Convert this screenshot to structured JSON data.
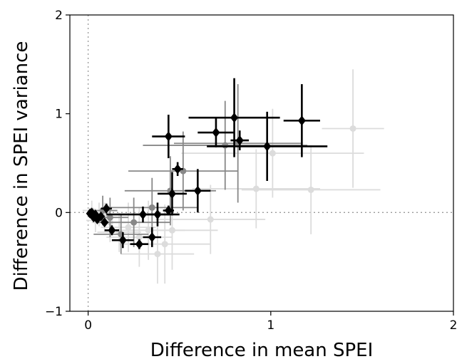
{
  "chart_data": {
    "type": "scatter",
    "title": "",
    "xlabel": "Difference in mean SPEI",
    "ylabel": "Difference in SPEI variance",
    "xlim": [
      -0.1,
      2.0
    ],
    "ylim": [
      -1.0,
      2.0
    ],
    "xticks": [
      0,
      1,
      2
    ],
    "yticks": [
      -1,
      0,
      1,
      2
    ],
    "xtick_labels": [
      "0",
      "1",
      "2"
    ],
    "ytick_labels": [
      "−1",
      "0",
      "1",
      "2"
    ],
    "grid": false,
    "reference_lines": [
      {
        "orientation": "vertical",
        "value": 0,
        "style": "dotted"
      },
      {
        "orientation": "horizontal",
        "value": 0,
        "style": "dotted"
      }
    ],
    "series": [
      {
        "color": "#dcdcdc",
        "marker": "circle",
        "points": [
          {
            "x": 1.45,
            "y": 0.85,
            "xerr": 0.17,
            "yerr": 0.6
          },
          {
            "x": 1.01,
            "y": 0.6,
            "xerr": 0.5,
            "yerr": 0.45
          },
          {
            "x": 0.92,
            "y": 0.24,
            "xerr": 0.35,
            "yerr": 0.4
          },
          {
            "x": 1.22,
            "y": 0.23,
            "xerr": 0.38,
            "yerr": 0.45
          },
          {
            "x": 0.67,
            "y": -0.07,
            "xerr": 0.3,
            "yerr": 0.35
          },
          {
            "x": 0.46,
            "y": -0.18,
            "xerr": 0.25,
            "yerr": 0.4
          },
          {
            "x": 0.42,
            "y": -0.32,
            "xerr": 0.25,
            "yerr": 0.4
          },
          {
            "x": 0.38,
            "y": -0.42,
            "xerr": 0.2,
            "yerr": 0.3
          },
          {
            "x": 0.33,
            "y": -0.18,
            "xerr": 0.2,
            "yerr": 0.3
          },
          {
            "x": 0.28,
            "y": -0.25,
            "xerr": 0.18,
            "yerr": 0.3
          },
          {
            "x": 0.22,
            "y": -0.15,
            "xerr": 0.15,
            "yerr": 0.25
          },
          {
            "x": 0.17,
            "y": -0.2,
            "xerr": 0.12,
            "yerr": 0.2
          },
          {
            "x": 0.12,
            "y": -0.1,
            "xerr": 0.1,
            "yerr": 0.2
          },
          {
            "x": 0.09,
            "y": -0.05,
            "xerr": 0.08,
            "yerr": 0.15
          },
          {
            "x": 0.06,
            "y": -0.02,
            "xerr": 0.06,
            "yerr": 0.12
          },
          {
            "x": 0.04,
            "y": -0.08,
            "xerr": 0.05,
            "yerr": 0.12
          },
          {
            "x": 0.02,
            "y": 0.02,
            "xerr": 0.05,
            "yerr": 0.1
          }
        ]
      },
      {
        "color": "#888888",
        "marker": "circle",
        "points": [
          {
            "x": 0.82,
            "y": 0.7,
            "xerr": 0.35,
            "yerr": 0.6
          },
          {
            "x": 0.75,
            "y": 0.68,
            "xerr": 0.45,
            "yerr": 0.45
          },
          {
            "x": 0.52,
            "y": 0.42,
            "xerr": 0.3,
            "yerr": 0.4
          },
          {
            "x": 0.45,
            "y": 0.22,
            "xerr": 0.25,
            "yerr": 0.35
          },
          {
            "x": 0.35,
            "y": 0.05,
            "xerr": 0.25,
            "yerr": 0.3
          },
          {
            "x": 0.25,
            "y": -0.1,
            "xerr": 0.2,
            "yerr": 0.25
          },
          {
            "x": 0.18,
            "y": -0.22,
            "xerr": 0.15,
            "yerr": 0.2
          },
          {
            "x": 0.12,
            "y": -0.05,
            "xerr": 0.1,
            "yerr": 0.2
          },
          {
            "x": 0.08,
            "y": 0.02,
            "xerr": 0.08,
            "yerr": 0.15
          }
        ]
      },
      {
        "color": "#000000",
        "marker": "diamond",
        "points": [
          {
            "x": 1.17,
            "y": 0.93,
            "xerr": 0.1,
            "yerr": 0.37
          },
          {
            "x": 0.8,
            "y": 0.96,
            "xerr": 0.25,
            "yerr": 0.4
          },
          {
            "x": 0.7,
            "y": 0.81,
            "xerr": 0.1,
            "yerr": 0.15
          },
          {
            "x": 0.83,
            "y": 0.73,
            "xerr": 0.05,
            "yerr": 0.1
          },
          {
            "x": 0.98,
            "y": 0.67,
            "xerr": 0.33,
            "yerr": 0.35
          },
          {
            "x": 0.44,
            "y": 0.77,
            "xerr": 0.09,
            "yerr": 0.22
          },
          {
            "x": 0.49,
            "y": 0.44,
            "xerr": 0.03,
            "yerr": 0.07
          },
          {
            "x": 0.46,
            "y": 0.19,
            "xerr": 0.08,
            "yerr": 0.22
          },
          {
            "x": 0.6,
            "y": 0.22,
            "xerr": 0.07,
            "yerr": 0.22
          },
          {
            "x": 0.44,
            "y": 0.02,
            "xerr": 0.03,
            "yerr": 0.05
          },
          {
            "x": 0.38,
            "y": -0.02,
            "xerr": 0.06,
            "yerr": 0.12
          },
          {
            "x": 0.3,
            "y": -0.02,
            "xerr": 0.2,
            "yerr": 0.08
          },
          {
            "x": 0.35,
            "y": -0.25,
            "xerr": 0.05,
            "yerr": 0.1
          },
          {
            "x": 0.28,
            "y": -0.32,
            "xerr": 0.05,
            "yerr": 0.05
          },
          {
            "x": 0.19,
            "y": -0.28,
            "xerr": 0.06,
            "yerr": 0.08
          },
          {
            "x": 0.13,
            "y": -0.18,
            "xerr": 0.04,
            "yerr": 0.05
          },
          {
            "x": 0.1,
            "y": 0.04,
            "xerr": 0.03,
            "yerr": 0.05
          },
          {
            "x": 0.09,
            "y": -0.1,
            "xerr": 0.02,
            "yerr": 0.03
          },
          {
            "x": 0.07,
            "y": -0.04,
            "xerr": 0.02,
            "yerr": 0.03
          },
          {
            "x": 0.05,
            "y": -0.07,
            "xerr": 0.02,
            "yerr": 0.03
          },
          {
            "x": 0.04,
            "y": -0.02,
            "xerr": 0.01,
            "yerr": 0.02
          },
          {
            "x": 0.02,
            "y": 0.0,
            "xerr": 0.01,
            "yerr": 0.02
          },
          {
            "x": 0.01,
            "y": -0.01,
            "xerr": 0.01,
            "yerr": 0.01
          },
          {
            "x": 0.03,
            "y": -0.05,
            "xerr": 0.01,
            "yerr": 0.01
          }
        ]
      }
    ]
  }
}
